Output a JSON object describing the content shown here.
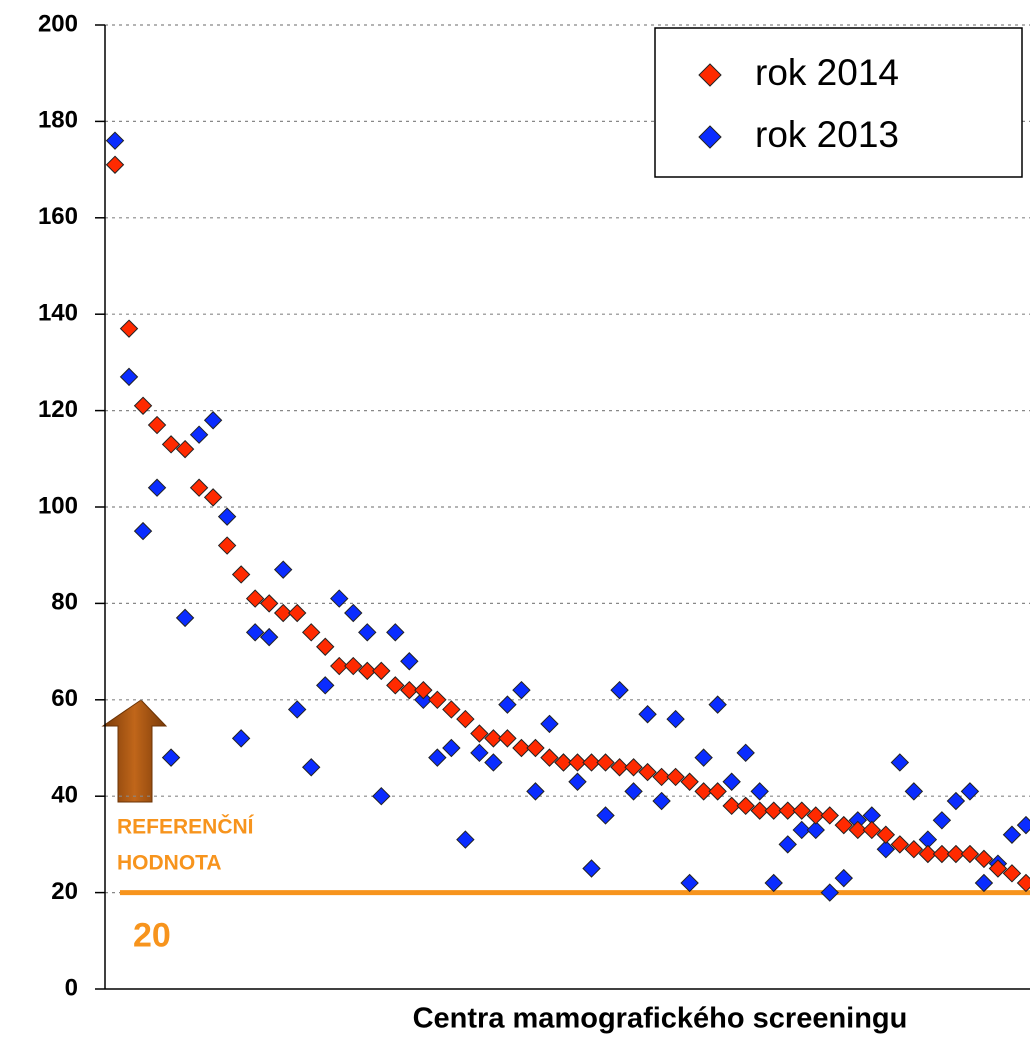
{
  "chart_data": {
    "type": "scatter",
    "x_label": "Centra mamografického screeningu",
    "categories": [
      null,
      null,
      null,
      null,
      null,
      null,
      null,
      null,
      null,
      null,
      null,
      null,
      null,
      null,
      null,
      null,
      null,
      null,
      null,
      null,
      null,
      null,
      null,
      null,
      null,
      null,
      null,
      null,
      null,
      null,
      null,
      null,
      null,
      null,
      null,
      null,
      null,
      null,
      null,
      null,
      null,
      null,
      null,
      null,
      null,
      null,
      null,
      null,
      null,
      null,
      null,
      null,
      null,
      null,
      null,
      null,
      null,
      null,
      null,
      null,
      null,
      null,
      null,
      null,
      null,
      null
    ],
    "series": [
      {
        "name": "rok 2014",
        "color": "#ff2a00",
        "values": [
          171,
          137,
          121,
          117,
          113,
          112,
          104,
          102,
          92,
          86,
          81,
          80,
          78,
          78,
          74,
          71,
          67,
          67,
          66,
          66,
          63,
          62,
          62,
          60,
          58,
          56,
          53,
          52,
          52,
          50,
          50,
          48,
          47,
          47,
          47,
          47,
          46,
          46,
          45,
          44,
          44,
          43,
          41,
          41,
          38,
          38,
          37,
          37,
          37,
          37,
          36,
          36,
          34,
          33,
          33,
          32,
          30,
          29,
          28,
          28,
          28,
          28,
          27,
          25,
          24,
          22
        ]
      },
      {
        "name": "rok 2013",
        "color": "#0a2cff",
        "values": [
          176,
          127,
          95,
          104,
          48,
          77,
          115,
          118,
          98,
          52,
          74,
          73,
          87,
          58,
          46,
          63,
          81,
          78,
          74,
          40,
          74,
          68,
          60,
          48,
          50,
          31,
          49,
          47,
          59,
          62,
          41,
          55,
          47,
          43,
          25,
          36,
          62,
          41,
          57,
          39,
          56,
          22,
          48,
          59,
          43,
          49,
          41,
          22,
          30,
          33,
          33,
          20,
          23,
          35,
          36,
          29,
          47,
          41,
          31,
          35,
          39,
          41,
          22,
          26,
          32,
          34
        ]
      }
    ],
    "ylim": [
      0,
      200
    ],
    "yticks": [
      0,
      20,
      40,
      60,
      80,
      100,
      120,
      140,
      160,
      180,
      200
    ],
    "grid": true,
    "legend": "upper right",
    "reference": {
      "value": 20,
      "color": "#f7941d",
      "text": [
        "REFERENČNÍ",
        "HODNOTA"
      ]
    }
  }
}
